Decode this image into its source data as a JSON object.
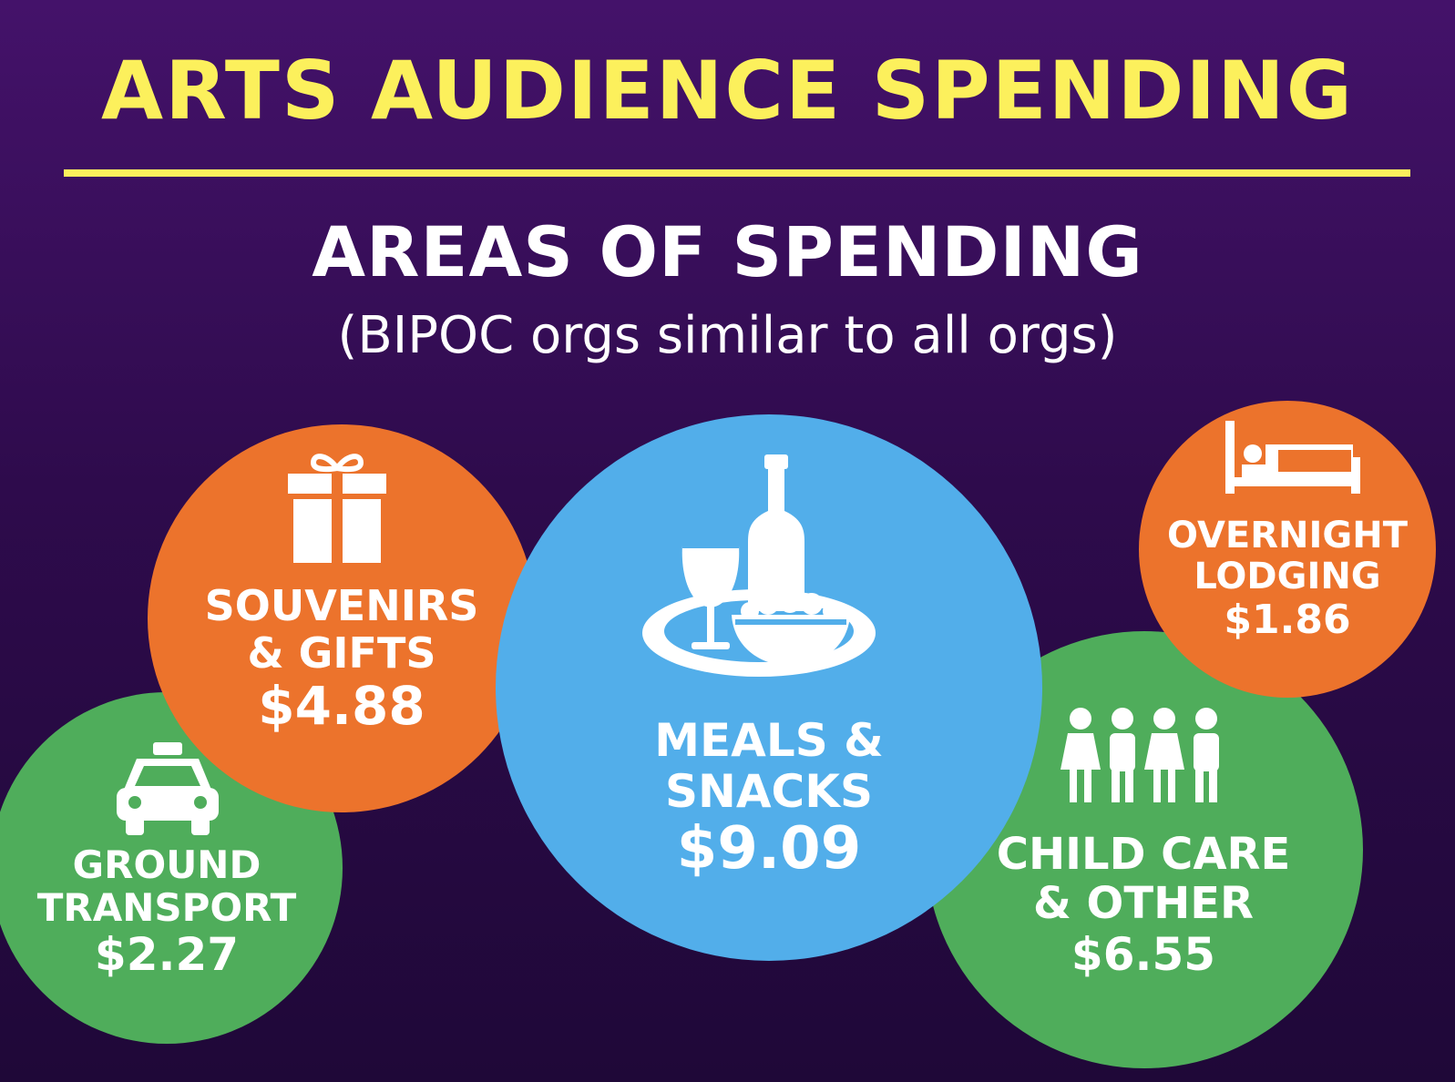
{
  "title": "ARTS AUDIENCE SPENDING",
  "subtitle": "AREAS OF SPENDING",
  "note": "(BIPOC orgs similar to all orgs)",
  "colors": {
    "title": "#fcf05c",
    "orange": "#ec732c",
    "green": "#4fad5b",
    "blue": "#52aeea",
    "background": "#2e0b4c"
  },
  "categories": {
    "souvenirs": {
      "line1": "SOUVENIRS",
      "line2": "& GIFTS",
      "amount": "$4.88",
      "icon": "gift-icon"
    },
    "ground": {
      "line1": "GROUND",
      "line2": "TRANSPORT",
      "amount": "$2.27",
      "icon": "taxi-icon"
    },
    "meals": {
      "line1": "MEALS &",
      "line2": "SNACKS",
      "amount": "$9.09",
      "icon": "food-drink-icon"
    },
    "lodging": {
      "line1": "OVERNIGHT",
      "line2": "LODGING",
      "amount": "$1.86",
      "icon": "bed-icon"
    },
    "childcare": {
      "line1": "CHILD CARE",
      "line2": "& OTHER",
      "amount": "$6.55",
      "icon": "family-icon"
    }
  }
}
